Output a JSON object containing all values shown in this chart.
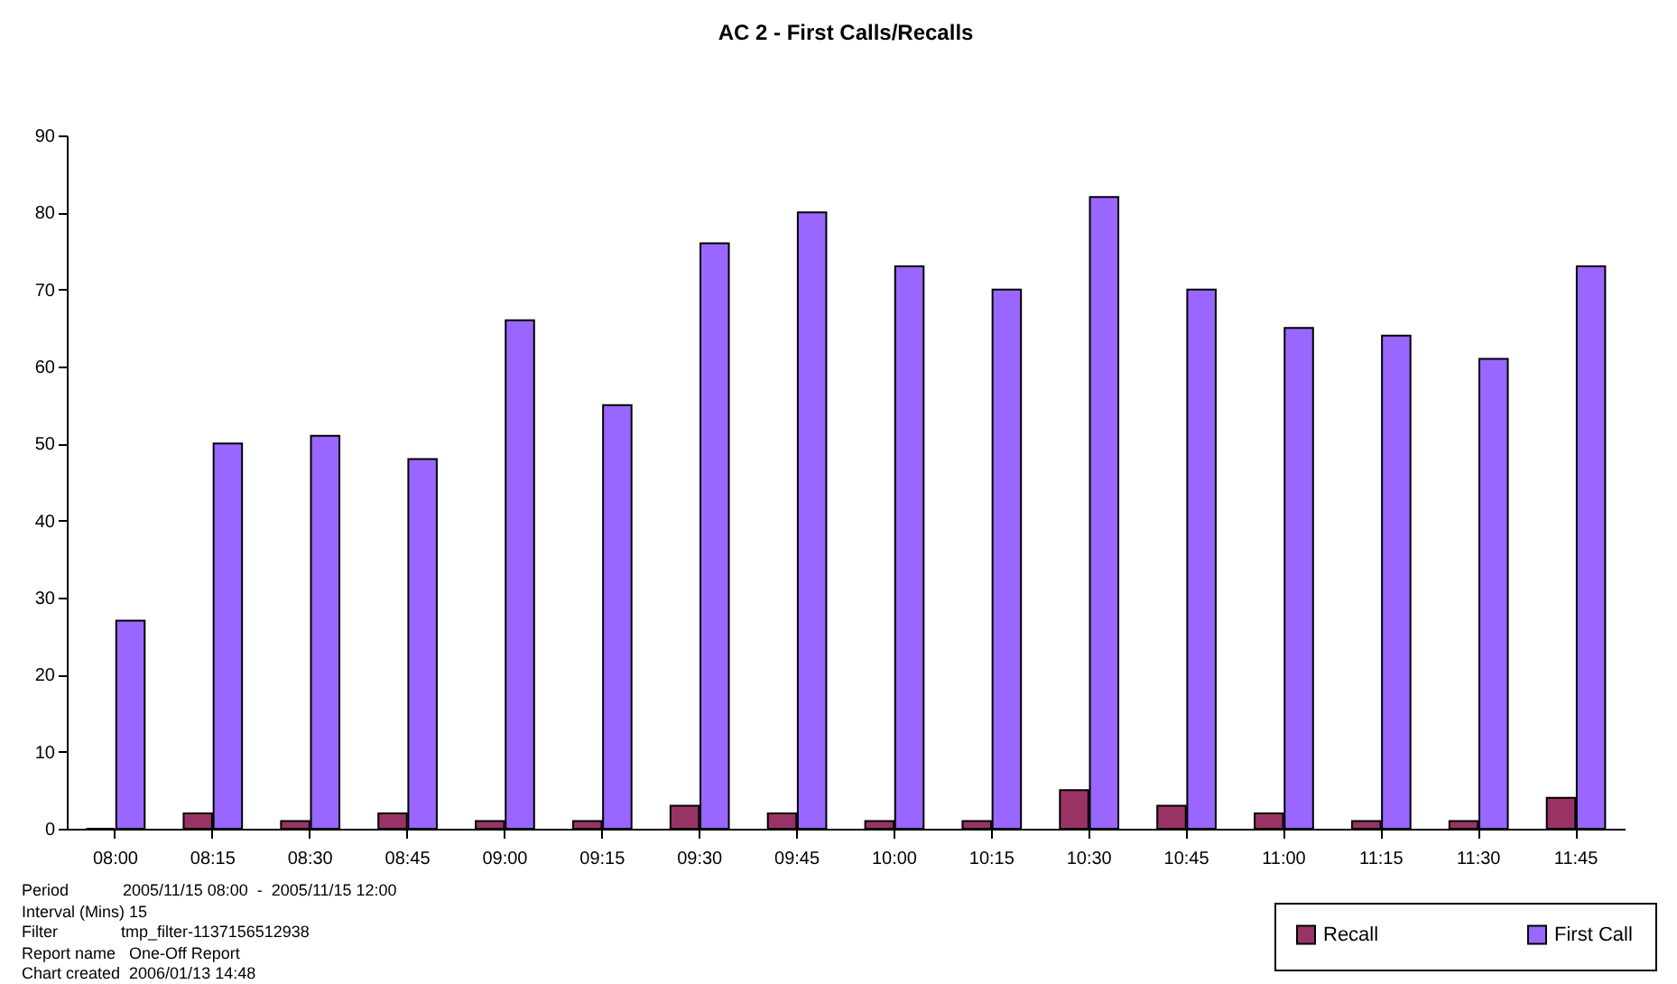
{
  "chart_data": {
    "type": "bar",
    "title": "AC 2 - First Calls/Recalls",
    "categories": [
      "08:00",
      "08:15",
      "08:30",
      "08:45",
      "09:00",
      "09:15",
      "09:30",
      "09:45",
      "10:00",
      "10:15",
      "10:30",
      "10:45",
      "11:00",
      "11:15",
      "11:30",
      "11:45"
    ],
    "series": [
      {
        "name": "Recall",
        "color": "#993366",
        "values": [
          0,
          2,
          1,
          2,
          1,
          1,
          3,
          2,
          1,
          1,
          5,
          3,
          2,
          1,
          1,
          4
        ]
      },
      {
        "name": "First Call",
        "color": "#9966ff",
        "values": [
          27,
          50,
          51,
          48,
          66,
          55,
          76,
          80,
          73,
          70,
          82,
          70,
          65,
          64,
          61,
          73
        ]
      }
    ],
    "ylim": [
      0,
      90
    ],
    "yticks": [
      0,
      10,
      20,
      30,
      40,
      50,
      60,
      70,
      80,
      90
    ],
    "grid": false,
    "legend": "bottom right",
    "annotations": [
      "Period            2005/11/15 08:00  -  2005/11/15 12:00",
      "Interval (Mins) 15",
      "Filter              tmp_filter-1137156512938",
      "Report name   One-Off Report",
      "Chart created  2006/01/13 14:48"
    ]
  }
}
